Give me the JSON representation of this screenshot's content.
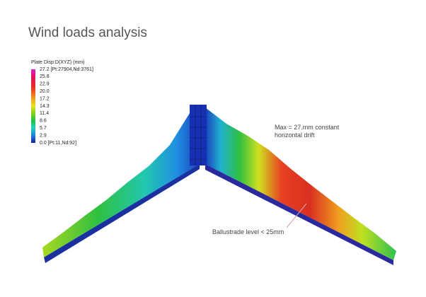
{
  "header": {
    "title": "Wind loads analysis"
  },
  "legend": {
    "title": "Plate Disp:D(XYZ)  (mm)",
    "labels": [
      "27.2 [Pt:27904,Nd:3761]",
      "25.8",
      "22.9",
      "20.0",
      "17.2",
      "14.3",
      "11.4",
      "8.6",
      "5.7",
      "2.9",
      "0.0 [Pt:11,Nd:92]"
    ]
  },
  "annotations": {
    "max_drift": [
      "Max = 27.mm constant",
      "horizontal drift"
    ],
    "ballustrade": "Ballustrade level < 25mm"
  }
}
